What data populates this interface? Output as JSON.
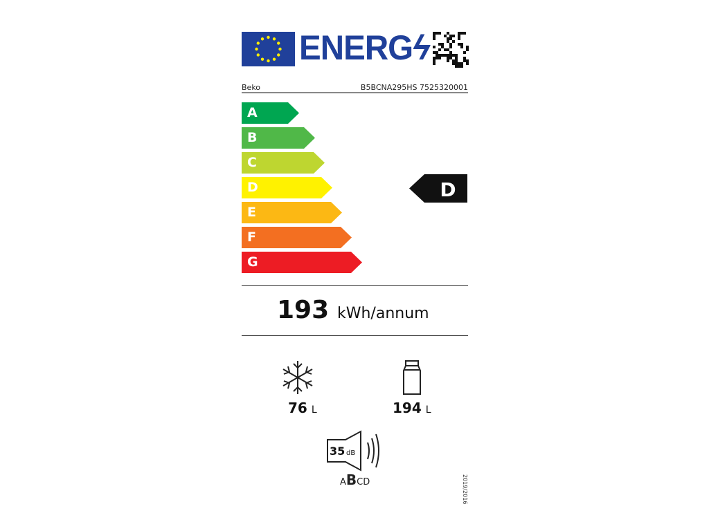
{
  "header": {
    "logo_text": "ENERG",
    "supplier": "Beko",
    "model": "B5BCNA295HS 7525320001"
  },
  "scale": {
    "classes": [
      "A",
      "B",
      "C",
      "D",
      "E",
      "F",
      "G"
    ],
    "colors": [
      "#00a651",
      "#50b848",
      "#bed630",
      "#fff200",
      "#fcb814",
      "#f36f21",
      "#ed1c24"
    ],
    "rated_class": "D"
  },
  "energy": {
    "value": "193",
    "unit": "kWh/annum"
  },
  "freezer": {
    "icon": "snowflake-icon",
    "value": "76",
    "unit": "L"
  },
  "fridge": {
    "icon": "bottle-icon",
    "value": "194",
    "unit": "L"
  },
  "noise": {
    "icon": "speaker-icon",
    "value": "35",
    "unit": "dB",
    "classes_pre": "A",
    "class": "B",
    "classes_post": "CD"
  },
  "regulation": "2019/2016"
}
